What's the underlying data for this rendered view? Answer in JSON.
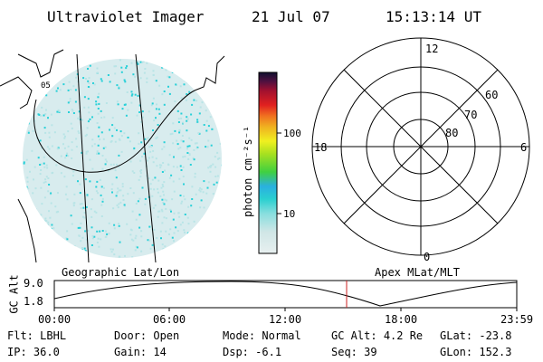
{
  "header": {
    "title": "Ultraviolet Imager",
    "date": "21 Jul 07",
    "time": "15:13:14 UT"
  },
  "geo_panel": {
    "lat_label": "05",
    "caption": "Geographic Lat/Lon"
  },
  "colorbar": {
    "unit_label": "photon cm⁻²s⁻¹",
    "ticks": [
      "100",
      "10"
    ]
  },
  "polar_panel": {
    "mlt_labels": {
      "top": "12",
      "bottom": "0",
      "left": "18",
      "right": "6"
    },
    "lat_labels": [
      "60",
      "70",
      "80"
    ],
    "caption": "Apex MLat/MLT"
  },
  "altitude_plot": {
    "ylabel": "GC Alt",
    "yticks": [
      "9.0",
      "1.8"
    ],
    "xticks": [
      "00:00",
      "06:00",
      "12:00",
      "18:00",
      "23:59"
    ]
  },
  "info": {
    "row1": [
      {
        "label": "Flt:",
        "value": "LBHL"
      },
      {
        "label": "Door:",
        "value": "Open"
      },
      {
        "label": "Mode:",
        "value": "Normal"
      },
      {
        "label": "GC Alt:",
        "value": "4.2 Re"
      },
      {
        "label": "GLat:",
        "value": "-23.8"
      }
    ],
    "row2": [
      {
        "label": "IP:",
        "value": "36.0"
      },
      {
        "label": "Gain:",
        "value": "14"
      },
      {
        "label": "Dsp:",
        "value": "-6.1"
      },
      {
        "label": "Seq:",
        "value": "39"
      },
      {
        "label": "GLon:",
        "value": "152.3"
      }
    ]
  },
  "colors": {
    "aurora_cyan": "#27d0d8",
    "aurora_light": "#b8e4e6",
    "marker_red": "#cc2222"
  }
}
